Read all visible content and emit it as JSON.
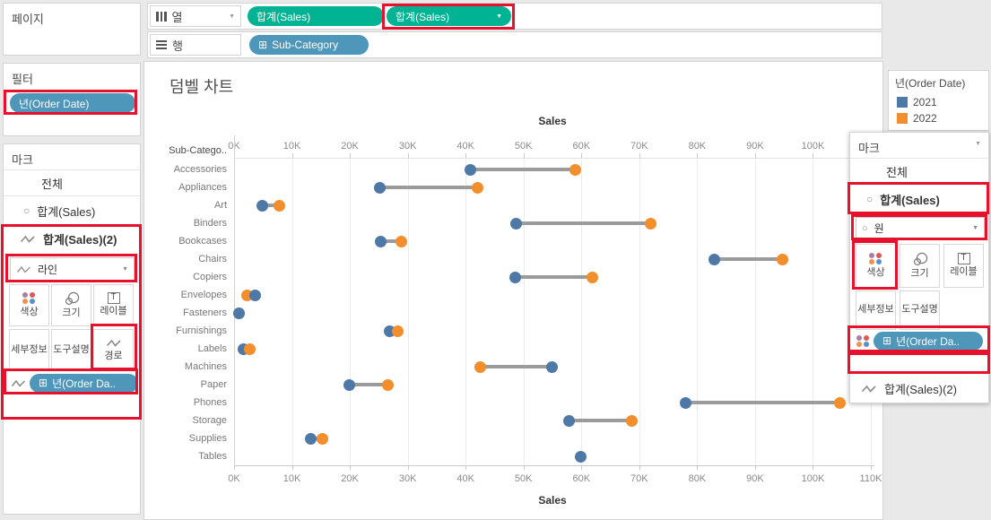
{
  "colors": {
    "pill_green": "#00b392",
    "pill_blue": "#4e96ba",
    "annotation_red": "#e8112d",
    "series_2021": "#4e79a7",
    "series_2022": "#f28e2b",
    "connector_gray": "#9b9b9b"
  },
  "pages_panel": {
    "title": "페이지"
  },
  "filter_panel": {
    "title": "필터",
    "pill": "년(Order Date)"
  },
  "shelves": {
    "columns": {
      "label": "열",
      "pills": [
        "합계(Sales)",
        "합계(Sales)"
      ]
    },
    "rows": {
      "label": "행",
      "pills": [
        "Sub-Category"
      ]
    }
  },
  "marks_panel_left": {
    "title": "마크",
    "all_label": "전체",
    "layer1": "합계(Sales)",
    "layer2": "합계(Sales)(2)",
    "mark_type": "라인",
    "buttons": {
      "color": "색상",
      "size": "크기",
      "label": "레이블",
      "detail": "세부정보",
      "tooltip": "도구설명",
      "path": "경로"
    },
    "pill": "년(Order Da.."
  },
  "marks_panel_right": {
    "title": "마크",
    "all_label": "전체",
    "layer1": "합계(Sales)",
    "layer2": "합계(Sales)(2)",
    "mark_type": "원",
    "buttons": {
      "color": "색상",
      "size": "크기",
      "label": "레이블",
      "detail": "세부정보",
      "tooltip": "도구설명"
    },
    "pill": "년(Order Da.."
  },
  "legend": {
    "title": "년(Order Date)",
    "items": [
      {
        "label": "2021",
        "color": "#4e79a7"
      },
      {
        "label": "2022",
        "color": "#f28e2b"
      }
    ]
  },
  "chart_data": {
    "type": "scatter",
    "subtype": "dumbbell",
    "title": "덤벨 차트",
    "row_axis_header": "Sub-Catego..",
    "xlabel": "Sales",
    "xlim_k": [
      0,
      110
    ],
    "tick_step_k": 10,
    "grid": true,
    "legend_position": "top-right",
    "categories": [
      "Accessories",
      "Appliances",
      "Art",
      "Binders",
      "Bookcases",
      "Chairs",
      "Copiers",
      "Envelopes",
      "Fasteners",
      "Furnishings",
      "Labels",
      "Machines",
      "Paper",
      "Phones",
      "Storage",
      "Supplies",
      "Tables"
    ],
    "series": [
      {
        "name": "2021",
        "color": "#4e79a7",
        "values_k": [
          40.8,
          25.1,
          4.9,
          48.8,
          25.3,
          82.9,
          48.6,
          3.7,
          0.9,
          26.9,
          1.6,
          55.0,
          19.9,
          78.0,
          57.9,
          13.2,
          59.9
        ]
      },
      {
        "name": "2022",
        "color": "#f28e2b",
        "values_k": [
          58.9,
          42.0,
          7.8,
          71.9,
          28.9,
          94.8,
          61.9,
          2.3,
          0.8,
          28.2,
          2.7,
          42.6,
          26.6,
          104.7,
          68.7,
          15.2,
          null
        ]
      }
    ],
    "connector_color": "#9b9b9b"
  }
}
